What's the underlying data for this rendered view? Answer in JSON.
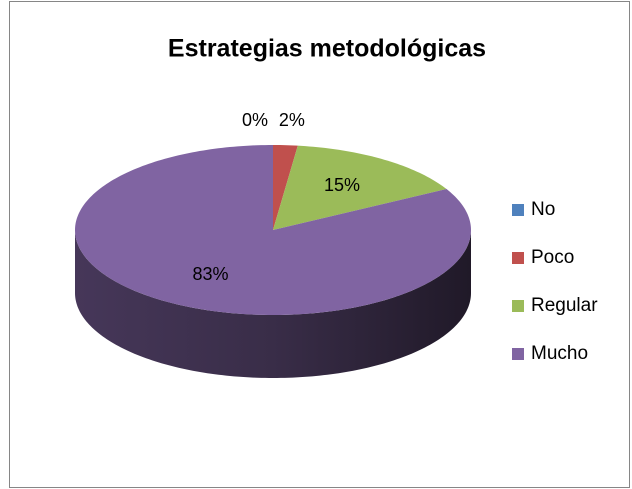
{
  "chart_data": {
    "type": "pie",
    "title": "Estrategias metodológicas",
    "categories": [
      "No",
      "Poco",
      "Regular",
      "Mucho"
    ],
    "values": [
      0,
      2,
      15,
      83
    ],
    "value_labels": [
      "0%",
      "2%",
      "15%",
      "83%"
    ],
    "colors": [
      "#4f81bd",
      "#c0504d",
      "#9bbb59",
      "#8064a2"
    ],
    "legend": "right"
  }
}
